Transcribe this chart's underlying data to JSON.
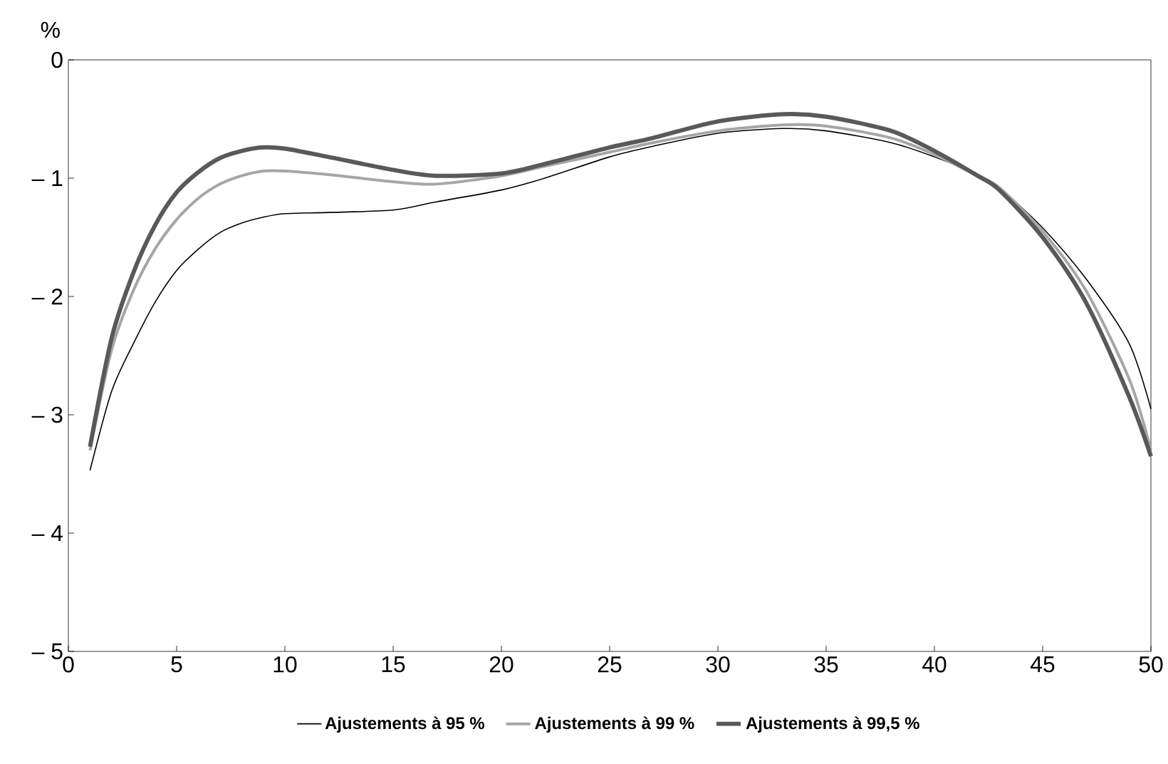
{
  "chart_data": {
    "type": "line",
    "ylabel": "%",
    "xlim": [
      0,
      50
    ],
    "ylim": [
      -5,
      0
    ],
    "xticks": [
      0,
      5,
      10,
      15,
      20,
      25,
      30,
      35,
      40,
      45,
      50
    ],
    "yticks": [
      {
        "value": -5,
        "label": "– 5"
      },
      {
        "value": -4,
        "label": "– 4"
      },
      {
        "value": -3,
        "label": "– 3"
      },
      {
        "value": -2,
        "label": "– 2"
      },
      {
        "value": -1,
        "label": "– 1"
      },
      0
    ],
    "x": [
      1,
      2,
      3,
      4,
      5,
      6,
      7,
      8,
      9,
      10,
      12,
      15,
      17,
      20,
      22,
      25,
      27,
      30,
      33,
      35,
      38,
      40,
      42,
      43,
      45,
      47,
      49,
      50
    ],
    "grid": false,
    "legend": "bottom",
    "marker": "none",
    "line_style": "solid",
    "series": [
      {
        "name": "Ajustements à 95 %",
        "color": "#000000",
        "values": [
          -3.47,
          -2.8,
          -2.4,
          -2.05,
          -1.78,
          -1.6,
          -1.46,
          -1.38,
          -1.33,
          -1.3,
          -1.29,
          -1.27,
          -1.2,
          -1.1,
          -1.0,
          -0.82,
          -0.73,
          -0.62,
          -0.58,
          -0.6,
          -0.7,
          -0.82,
          -0.97,
          -1.08,
          -1.42,
          -1.85,
          -2.4,
          -2.95
        ]
      },
      {
        "name": "Ajustements à 99 %",
        "color": "#a6a6a6",
        "values": [
          -3.3,
          -2.45,
          -1.95,
          -1.6,
          -1.35,
          -1.17,
          -1.05,
          -0.98,
          -0.94,
          -0.94,
          -0.97,
          -1.03,
          -1.05,
          -0.98,
          -0.9,
          -0.78,
          -0.7,
          -0.6,
          -0.55,
          -0.56,
          -0.66,
          -0.8,
          -0.98,
          -1.08,
          -1.45,
          -1.95,
          -2.7,
          -3.3
        ]
      },
      {
        "name": "Ajustements à 99,5 %",
        "color": "#595959",
        "values": [
          -3.27,
          -2.35,
          -1.8,
          -1.4,
          -1.12,
          -0.95,
          -0.83,
          -0.77,
          -0.74,
          -0.75,
          -0.82,
          -0.93,
          -0.98,
          -0.96,
          -0.88,
          -0.74,
          -0.66,
          -0.52,
          -0.46,
          -0.48,
          -0.6,
          -0.77,
          -0.98,
          -1.1,
          -1.5,
          -2.05,
          -2.85,
          -3.35
        ]
      }
    ]
  }
}
